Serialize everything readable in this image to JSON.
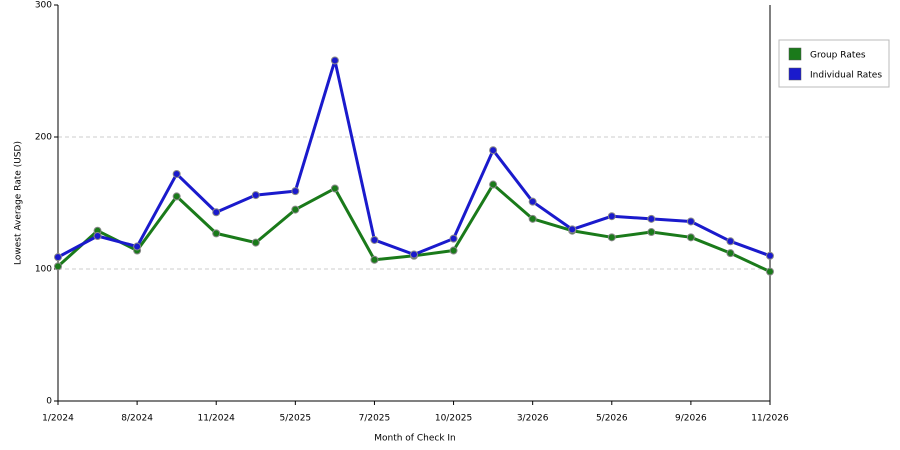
{
  "chart_data": {
    "type": "line",
    "x_label": "Month of Check In",
    "y_label": "Lowest Average Rate (USD)",
    "categories": [
      "1/2024",
      null,
      "8/2024",
      null,
      "11/2024",
      null,
      "5/2025",
      null,
      "7/2025",
      null,
      "10/2025",
      null,
      "3/2026",
      null,
      "5/2026",
      null,
      "9/2026",
      null,
      "11/2026"
    ],
    "series": [
      {
        "name": "Group Rates",
        "color": "#1a7a1a",
        "values": [
          102,
          129,
          114,
          155,
          127,
          120,
          145,
          161,
          107,
          110,
          114,
          164,
          138,
          129,
          124,
          128,
          124,
          112,
          98
        ]
      },
      {
        "name": "Individual Rates",
        "color": "#1a1acc",
        "values": [
          109,
          125,
          117,
          172,
          143,
          156,
          159,
          258,
          122,
          111,
          123,
          190,
          151,
          130,
          140,
          138,
          136,
          121,
          110
        ]
      }
    ],
    "ylim": [
      0,
      300
    ],
    "yticks": [
      0,
      100,
      200,
      300
    ],
    "grid": true,
    "legend": "right"
  }
}
